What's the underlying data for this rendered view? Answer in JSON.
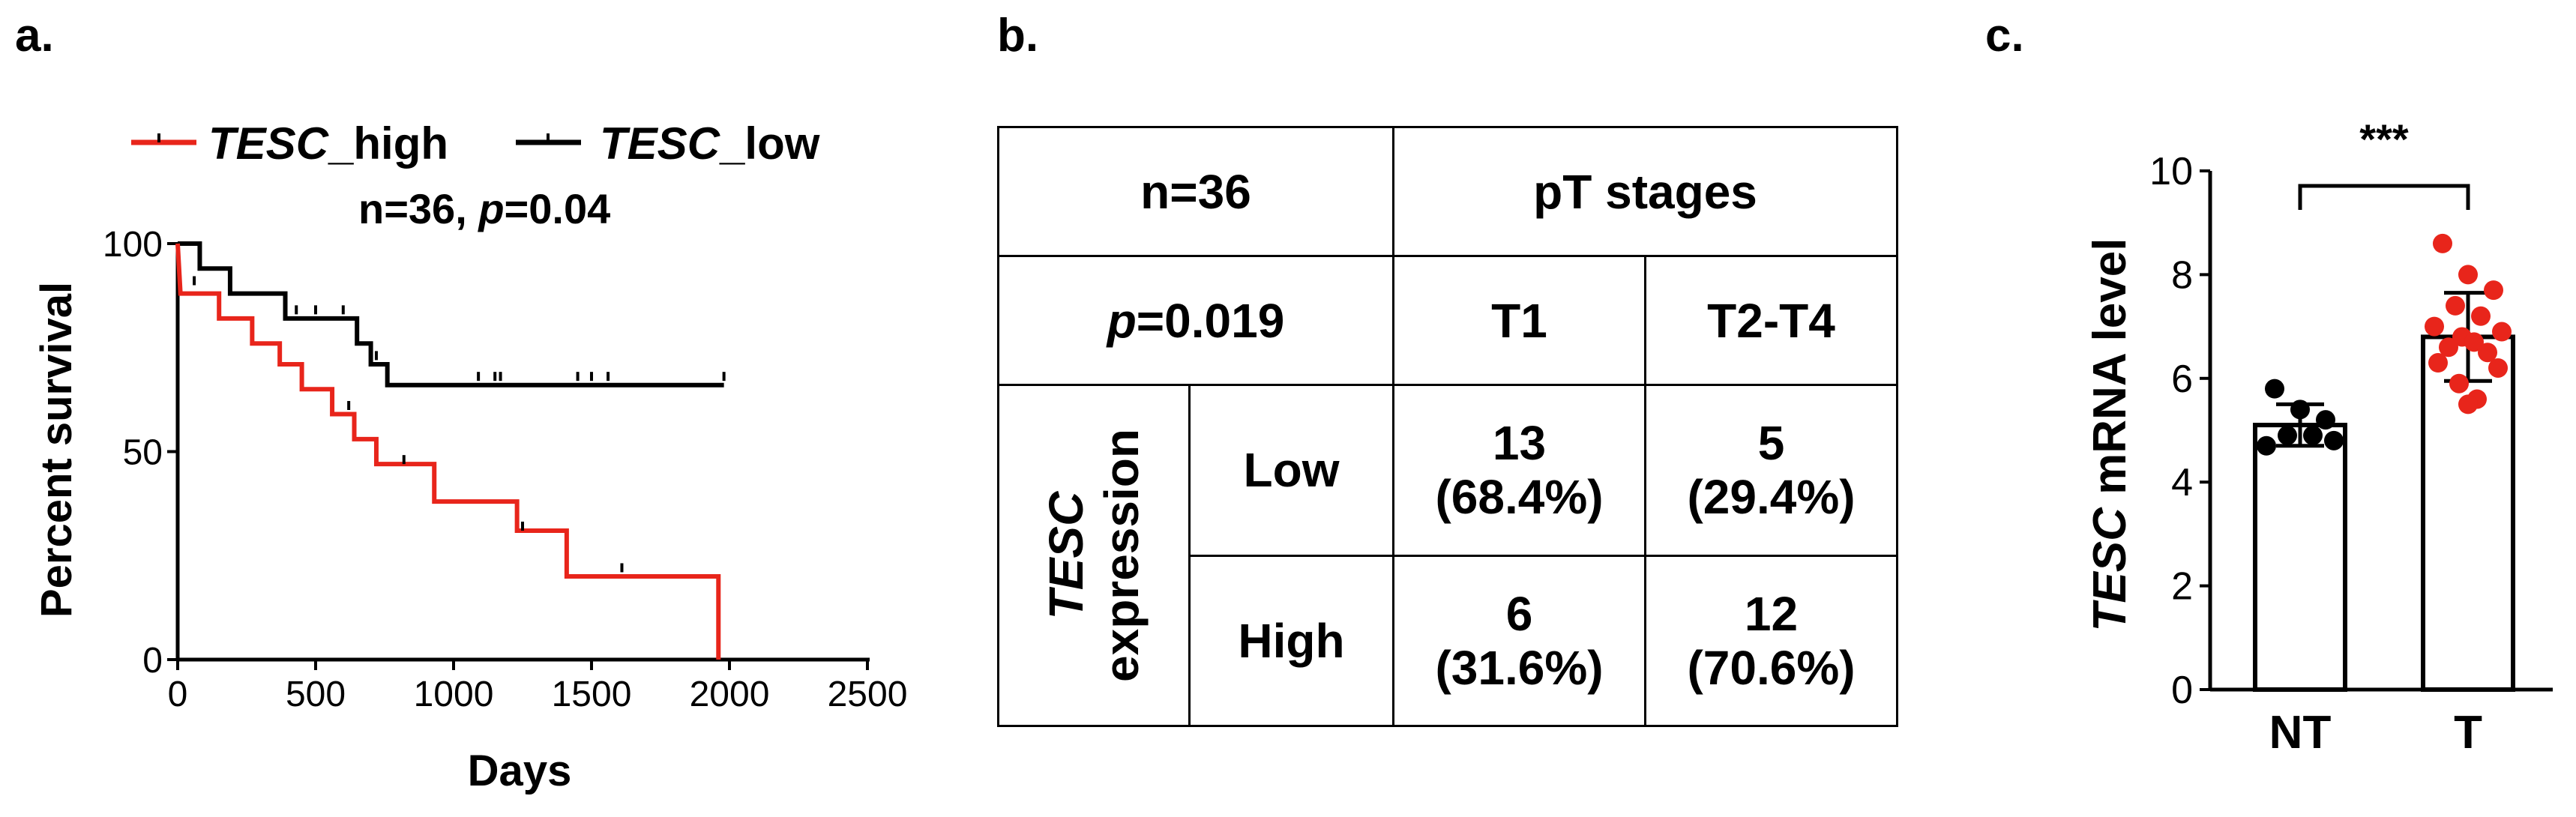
{
  "panel_a": {
    "label": "a.",
    "legend": [
      {
        "gene": "TESC",
        "suffix": "_high",
        "color": "#e8251b"
      },
      {
        "gene": "TESC",
        "suffix": "_low",
        "color": "#000000"
      }
    ],
    "stat_n": "n=36, ",
    "stat_p_letter": "p",
    "stat_p_value": "=0.04",
    "ylabel": "Percent survival",
    "xlabel": "Days"
  },
  "panel_b": {
    "label": "b.",
    "n_label": "n=36",
    "header": "pT stages",
    "p_letter": "p",
    "p_value": "=0.019",
    "col_t1": "T1",
    "col_t2": "T2-T4",
    "row_group_gene": "TESC",
    "row_group_word": "expression",
    "row_low": "Low",
    "row_high": "High",
    "low_t1_count": "13",
    "low_t1_pct": "(68.4%)",
    "low_t2_count": "5",
    "low_t2_pct": "(29.4%)",
    "high_t1_count": "6",
    "high_t1_pct": "(31.6%)",
    "high_t2_count": "12",
    "high_t2_pct": "(70.6%)"
  },
  "panel_c": {
    "label": "c.",
    "ylabel_gene": "TESC",
    "ylabel_rest": " mRNA level",
    "significance": "***"
  },
  "chart_data": [
    {
      "type": "line",
      "title": "",
      "xlabel": "Days",
      "ylabel": "Percent survival",
      "xlim": [
        0,
        2500
      ],
      "ylim": [
        0,
        100
      ],
      "xticks": [
        0,
        500,
        1000,
        1500,
        2000,
        2500
      ],
      "yticks": [
        0,
        50,
        100
      ],
      "annotation": "n=36, p=0.04",
      "legend_position": "top",
      "series": [
        {
          "name": "TESC_high",
          "color": "#e8251b",
          "step": [
            [
              0,
              100
            ],
            [
              10,
              88
            ],
            [
              150,
              88
            ],
            [
              150,
              82
            ],
            [
              270,
              82
            ],
            [
              270,
              76
            ],
            [
              370,
              76
            ],
            [
              370,
              71
            ],
            [
              450,
              71
            ],
            [
              450,
              65
            ],
            [
              560,
              65
            ],
            [
              560,
              59
            ],
            [
              640,
              59
            ],
            [
              640,
              53
            ],
            [
              720,
              53
            ],
            [
              720,
              47
            ],
            [
              930,
              47
            ],
            [
              930,
              38
            ],
            [
              1230,
              38
            ],
            [
              1230,
              31
            ],
            [
              1410,
              31
            ],
            [
              1410,
              20
            ],
            [
              1960,
              20
            ],
            [
              1960,
              0
            ]
          ],
          "censor": [
            [
              60,
              90
            ],
            [
              620,
              60
            ],
            [
              820,
              47
            ],
            [
              1250,
              31
            ],
            [
              1610,
              21
            ]
          ]
        },
        {
          "name": "TESC_low",
          "color": "#000000",
          "step": [
            [
              0,
              100
            ],
            [
              80,
              100
            ],
            [
              80,
              94
            ],
            [
              190,
              94
            ],
            [
              190,
              88
            ],
            [
              390,
              88
            ],
            [
              390,
              82
            ],
            [
              650,
              82
            ],
            [
              650,
              76
            ],
            [
              700,
              76
            ],
            [
              700,
              71
            ],
            [
              760,
              71
            ],
            [
              760,
              66
            ],
            [
              1980,
              66
            ]
          ],
          "censor": [
            [
              430,
              83
            ],
            [
              500,
              83
            ],
            [
              600,
              83
            ],
            [
              720,
              72
            ],
            [
              1090,
              67
            ],
            [
              1150,
              67
            ],
            [
              1170,
              67
            ],
            [
              1450,
              67
            ],
            [
              1500,
              67
            ],
            [
              1560,
              67
            ],
            [
              1980,
              67
            ]
          ]
        }
      ]
    },
    {
      "type": "table",
      "title": "",
      "columns": [
        "T1",
        "T2-T4"
      ],
      "rows": [
        {
          "name": "Low",
          "values": [
            "13 (68.4%)",
            "5 (29.4%)"
          ]
        },
        {
          "name": "High",
          "values": [
            "6 (31.6%)",
            "12 (70.6%)"
          ]
        }
      ],
      "annotation": "n=36, p=0.019"
    },
    {
      "type": "bar",
      "title": "",
      "categories": [
        "NT",
        "T"
      ],
      "ylabel": "TESC mRNA level",
      "ylim": [
        0,
        10
      ],
      "yticks": [
        0,
        2,
        4,
        6,
        8,
        10
      ],
      "values": [
        5.1,
        6.8
      ],
      "sd": [
        0.4,
        0.85
      ],
      "points": [
        [
          5.8,
          5.4,
          5.2,
          4.9,
          4.9,
          4.7,
          4.8
        ],
        [
          8.6,
          8.0,
          7.7,
          7.4,
          7.2,
          7.0,
          6.9,
          6.8,
          6.7,
          6.6,
          6.5,
          6.3,
          6.2,
          5.9,
          5.6,
          5.5
        ]
      ],
      "point_colors": [
        "#000000",
        "#e8251b"
      ],
      "annotation": "***"
    }
  ]
}
